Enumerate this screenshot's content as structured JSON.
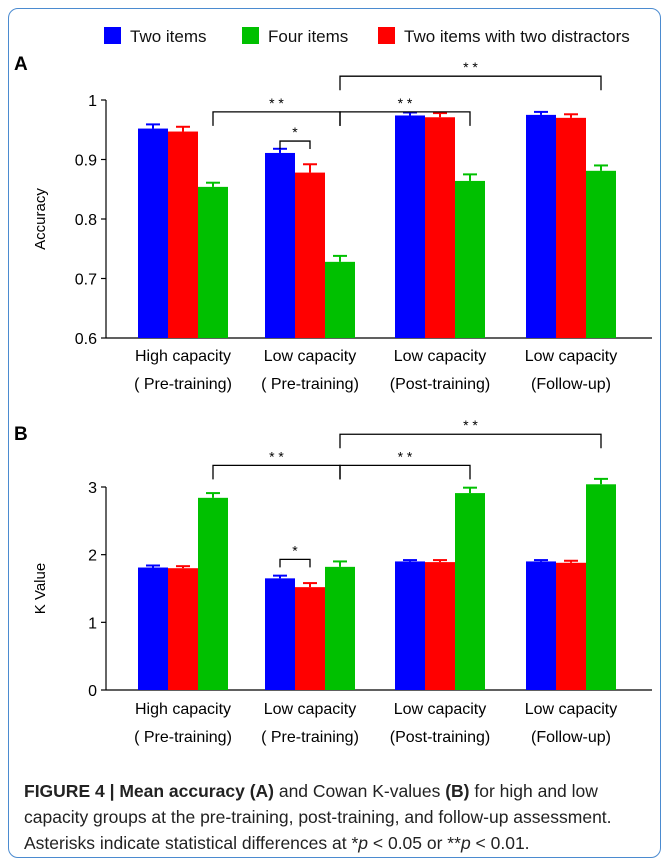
{
  "legend": [
    {
      "name": "Two items",
      "color": "#0000ff"
    },
    {
      "name": "Four items",
      "color": "#00c000"
    },
    {
      "name": "Two items with two distractors",
      "color": "#ff0000"
    }
  ],
  "chart_data": [
    {
      "panel": "A",
      "type": "bar",
      "ylabel": "Accuracy",
      "ylim": [
        0.6,
        1.0
      ],
      "yticks": [
        "0.6",
        "0.7",
        "0.8",
        "0.9",
        "1"
      ],
      "categories": [
        [
          "High capacity",
          "( Pre-training)"
        ],
        [
          "Low capacity",
          "( Pre-training)"
        ],
        [
          "Low capacity",
          "(Post-training)"
        ],
        [
          "Low capacity",
          "(Follow-up)"
        ]
      ],
      "series": [
        {
          "name": "Two items",
          "color": "#0000ff",
          "values": [
            0.952,
            0.911,
            0.974,
            0.975
          ],
          "errors": [
            0.007,
            0.007,
            0.005,
            0.005
          ]
        },
        {
          "name": "Two items with two distractors",
          "color": "#ff0000",
          "values": [
            0.947,
            0.878,
            0.971,
            0.97
          ],
          "errors": [
            0.008,
            0.014,
            0.007,
            0.006
          ]
        },
        {
          "name": "Four items",
          "color": "#00c000",
          "values": [
            0.854,
            0.728,
            0.864,
            0.881
          ],
          "errors": [
            0.007,
            0.01,
            0.011,
            0.009
          ]
        }
      ],
      "brackets": [
        {
          "from": [
            0,
            2
          ],
          "to": [
            1,
            2
          ],
          "level": 0.98,
          "label": "* *"
        },
        {
          "from": [
            1,
            2
          ],
          "to": [
            2,
            2
          ],
          "level": 0.98,
          "label": "* *"
        },
        {
          "from": [
            1,
            2
          ],
          "to": [
            3,
            2
          ],
          "level": 1.04,
          "label": "* *"
        },
        {
          "from": [
            1,
            0
          ],
          "to": [
            1,
            1
          ],
          "level": 0.931,
          "label": "*"
        }
      ]
    },
    {
      "panel": "B",
      "type": "bar",
      "ylabel": "K Value",
      "ylim": [
        0,
        3.3
      ],
      "yticks": [
        "0",
        "1",
        "2",
        "3"
      ],
      "categories": [
        [
          "High capacity",
          "( Pre-training)"
        ],
        [
          "Low capacity",
          "( Pre-training)"
        ],
        [
          "Low capacity",
          "(Post-training)"
        ],
        [
          "Low capacity",
          "(Follow-up)"
        ]
      ],
      "series": [
        {
          "name": "Two items",
          "color": "#0000ff",
          "values": [
            1.81,
            1.65,
            1.9,
            1.9
          ],
          "errors": [
            0.03,
            0.04,
            0.02,
            0.02
          ]
        },
        {
          "name": "Two items with two distractors",
          "color": "#ff0000",
          "values": [
            1.8,
            1.52,
            1.89,
            1.88
          ],
          "errors": [
            0.03,
            0.06,
            0.03,
            0.03
          ]
        },
        {
          "name": "Four items",
          "color": "#00c000",
          "values": [
            2.84,
            1.82,
            2.91,
            3.04
          ],
          "errors": [
            0.07,
            0.08,
            0.08,
            0.08
          ]
        }
      ],
      "brackets": [
        {
          "from": [
            0,
            2
          ],
          "to": [
            1,
            2
          ],
          "level": 3.32,
          "label": "* *"
        },
        {
          "from": [
            1,
            2
          ],
          "to": [
            2,
            2
          ],
          "level": 3.32,
          "label": "* *"
        },
        {
          "from": [
            1,
            2
          ],
          "to": [
            3,
            2
          ],
          "level": 3.78,
          "label": "* *"
        },
        {
          "from": [
            1,
            0
          ],
          "to": [
            1,
            1
          ],
          "level": 1.93,
          "label": "*"
        }
      ]
    }
  ],
  "caption": {
    "heading": "FIGURE 4 | Mean accuracy ",
    "a": "(A)",
    "mid1": " and Cowan K-values ",
    "b": "(B)",
    "rest": " for high and low capacity groups at the pre-training, post-training, and follow-up assessment. Asterisks indicate statistical differences at *",
    "p1": "p",
    "t1": " < 0.05 or **",
    "p2": "p",
    "t2": " < 0.01."
  }
}
